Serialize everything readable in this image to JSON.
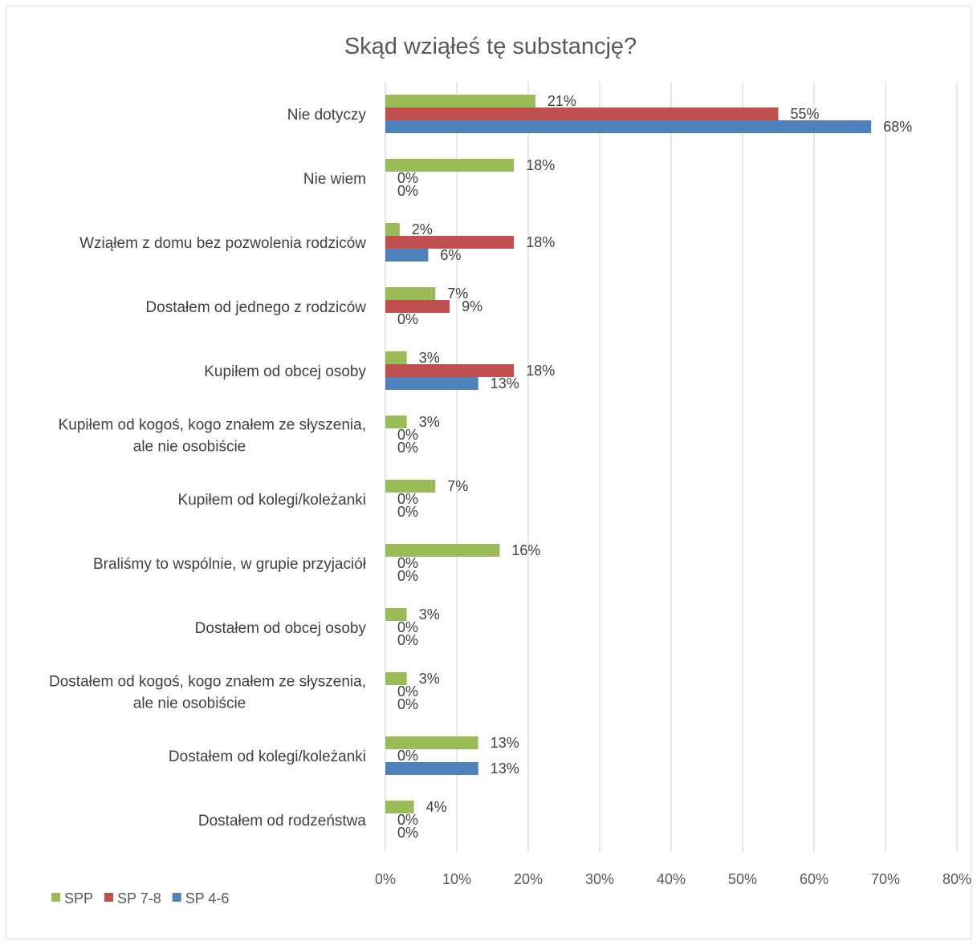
{
  "chart_data": {
    "type": "bar",
    "orientation": "horizontal",
    "title": "Skąd wziąłeś tę substancję?",
    "categories": [
      [
        "Nie dotyczy"
      ],
      [
        "Nie wiem"
      ],
      [
        "Wziąłem z domu bez pozwolenia rodziców"
      ],
      [
        "Dostałem od jednego z rodziców"
      ],
      [
        "Kupiłem od obcej osoby"
      ],
      [
        "Kupiłem od kogoś, kogo znałem ze słyszenia,",
        "ale nie osobiście"
      ],
      [
        "Kupiłem od kolegi/koleżanki"
      ],
      [
        "Braliśmy to wspólnie, w grupie przyjaciół"
      ],
      [
        "Dostałem od obcej osoby"
      ],
      [
        "Dostałem od kogoś, kogo znałem ze słyszenia,",
        "ale nie osobiście"
      ],
      [
        "Dostałem od kolegi/koleżanki"
      ],
      [
        "Dostałem od rodzeństwa"
      ]
    ],
    "series": [
      {
        "name": "SPP",
        "color": "#9BBB59",
        "values": [
          21,
          18,
          2,
          7,
          3,
          3,
          7,
          16,
          3,
          3,
          13,
          4
        ]
      },
      {
        "name": "SP 7-8",
        "color": "#C0504D",
        "values": [
          55,
          0,
          18,
          9,
          18,
          0,
          0,
          0,
          0,
          0,
          0,
          0
        ]
      },
      {
        "name": "SP 4-6",
        "color": "#4F81BD",
        "values": [
          68,
          0,
          6,
          0,
          13,
          0,
          0,
          0,
          0,
          0,
          13,
          0
        ]
      }
    ],
    "xlim": [
      0,
      80
    ],
    "xticks": [
      0,
      10,
      20,
      30,
      40,
      50,
      60,
      70,
      80
    ],
    "tick_suffix": "%",
    "grid": "vertical",
    "legend_position": "bottom-left"
  }
}
